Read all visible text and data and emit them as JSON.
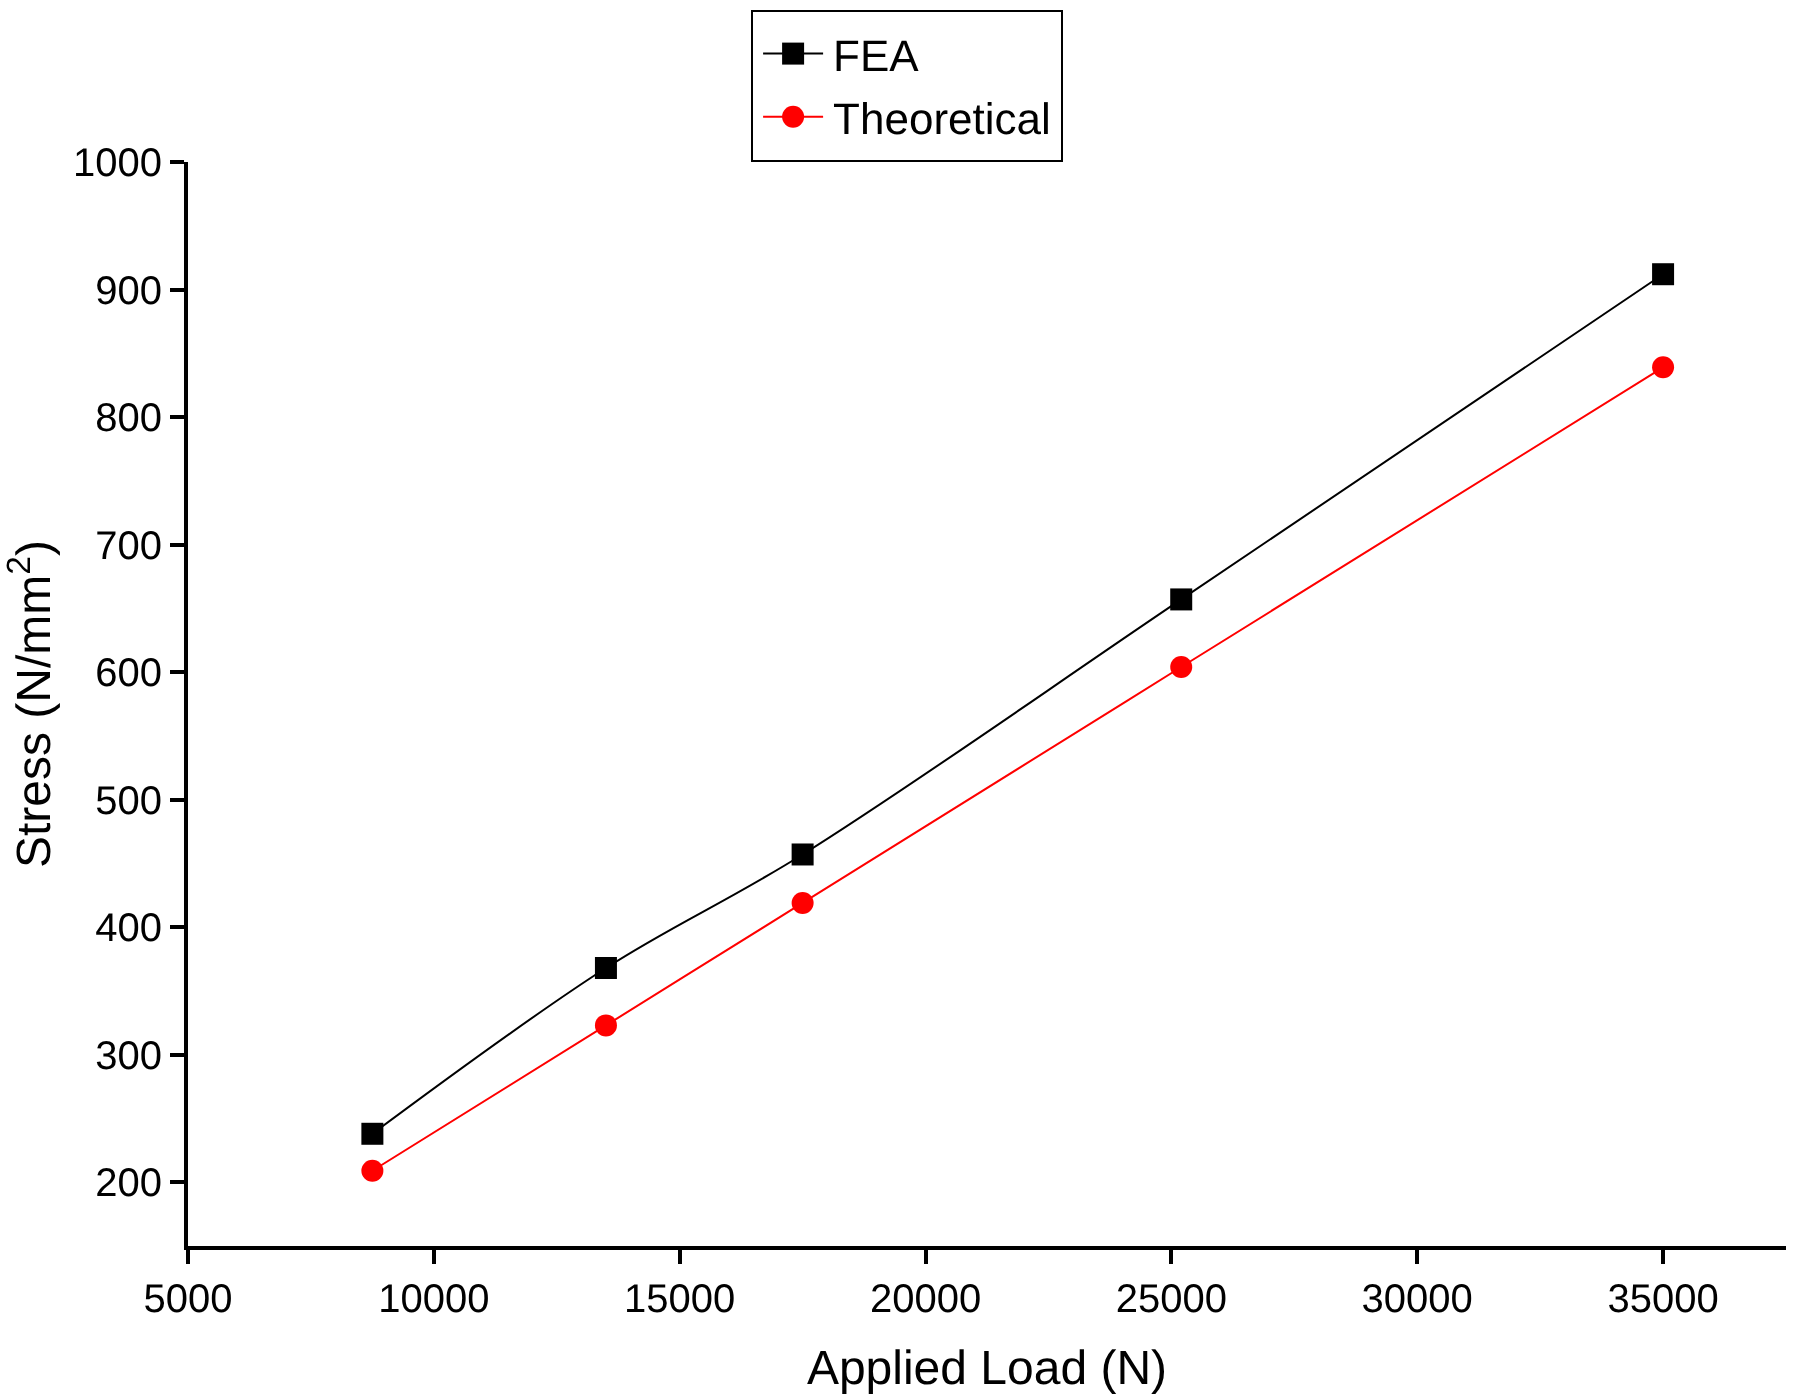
{
  "chart_data": {
    "type": "line",
    "xlabel": "Applied Load (N)",
    "ylabel": "Stress (N/mm$^{2}$)",
    "x": [
      8750,
      13500,
      17500,
      25200,
      35000
    ],
    "series": [
      {
        "name": "FEA",
        "color": "#000000",
        "marker": "square",
        "values": [
          238,
          368,
          457,
          657,
          912
        ]
      },
      {
        "name": "Theoretical",
        "color": "#ff0000",
        "marker": "circle",
        "values": [
          209,
          323,
          419,
          604,
          839
        ]
      }
    ],
    "xlim": [
      5000,
      37500
    ],
    "xticks": [
      5000,
      10000,
      15000,
      20000,
      25000,
      30000,
      35000
    ],
    "ylim": [
      150,
      1000
    ],
    "yticks": [
      200,
      300,
      400,
      500,
      600,
      700,
      800,
      900,
      1000
    ],
    "legend": "top",
    "line_style": "solid"
  }
}
